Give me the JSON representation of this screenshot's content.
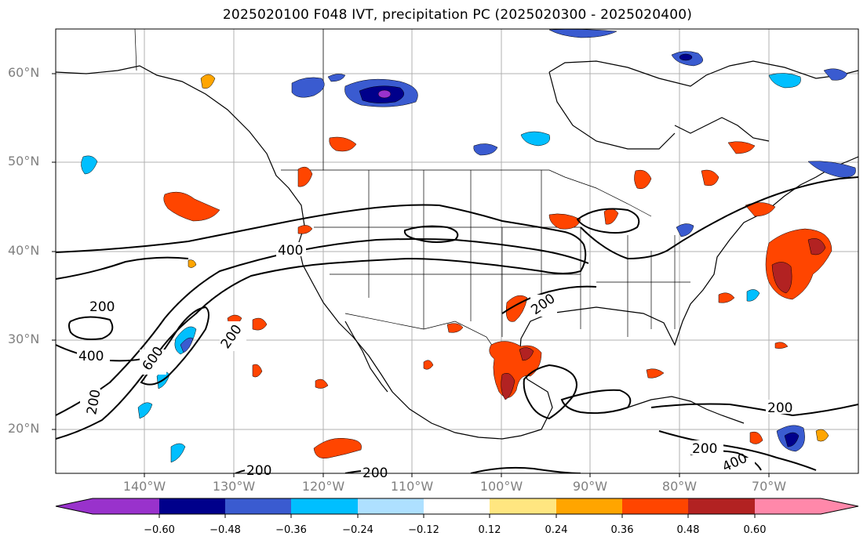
{
  "title": "2025020100 F048 IVT, precipitation PC (2025020300 - 2025020400)",
  "map": {
    "projection": "PlateCarree",
    "extent_lon": [
      -150,
      -60
    ],
    "extent_lat": [
      15,
      65
    ],
    "lat_ticks": [
      "20°N",
      "30°N",
      "40°N",
      "50°N",
      "60°N"
    ],
    "lon_ticks": [
      "140°W",
      "130°W",
      "120°W",
      "110°W",
      "100°W",
      "90°W",
      "80°W",
      "70°W"
    ],
    "gridlines": true,
    "ivt_contour_labels": [
      "400",
      "200",
      "400",
      "600",
      "200",
      "200",
      "200",
      "200",
      "200",
      "200",
      "200",
      "400"
    ]
  },
  "colorbar": {
    "ticks": [
      "−0.60",
      "−0.48",
      "−0.36",
      "−0.24",
      "−0.12",
      "0.12",
      "0.24",
      "0.36",
      "0.48",
      "0.60"
    ],
    "colors": [
      "#9932cc",
      "#00008b",
      "#3a5bd0",
      "#00bfff",
      "#aee0ff",
      "#ffffff",
      "#ffe680",
      "#ffa500",
      "#ff4500",
      "#b22222",
      "#ff88aa"
    ],
    "extend": "both"
  }
}
